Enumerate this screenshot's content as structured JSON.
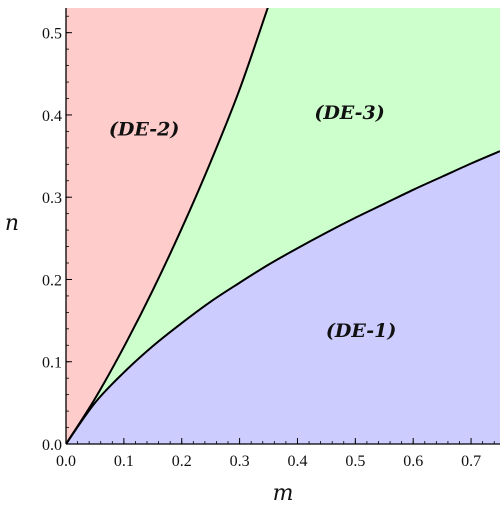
{
  "chart_data": {
    "type": "area",
    "title": "",
    "xlabel": "m",
    "ylabel": "n",
    "xlim": [
      0,
      0.75
    ],
    "ylim": [
      0,
      0.53
    ],
    "grid": false,
    "x_ticks": [
      0.0,
      0.1,
      0.2,
      0.3,
      0.4,
      0.5,
      0.6,
      0.7
    ],
    "x_tick_labels": [
      "0.0",
      "0.1",
      "0.2",
      "0.3",
      "0.4",
      "0.5",
      "0.6",
      "0.7"
    ],
    "y_ticks": [
      0.0,
      0.1,
      0.2,
      0.3,
      0.4,
      0.5
    ],
    "y_tick_labels": [
      "0.0",
      "0.1",
      "0.2",
      "0.3",
      "0.4",
      "0.5"
    ],
    "boundaries": [
      {
        "id": "upper",
        "x": [
          0.0,
          0.05,
          0.1,
          0.15,
          0.2,
          0.25,
          0.3,
          0.35
        ],
        "y": [
          0.0,
          0.055,
          0.118,
          0.187,
          0.262,
          0.343,
          0.431,
          0.533
        ]
      },
      {
        "id": "lower",
        "x": [
          0.0,
          0.05,
          0.1,
          0.15,
          0.2,
          0.25,
          0.3,
          0.35,
          0.4,
          0.45,
          0.5,
          0.55,
          0.6,
          0.65,
          0.7,
          0.75
        ],
        "y": [
          0.0,
          0.05,
          0.087,
          0.119,
          0.147,
          0.173,
          0.196,
          0.218,
          0.238,
          0.257,
          0.275,
          0.292,
          0.309,
          0.325,
          0.341,
          0.356
        ]
      }
    ],
    "regions": [
      {
        "label": "(DE-2)",
        "color": "#ffcccc",
        "label_at": [
          0.135,
          0.375
        ],
        "between": [
          "upper",
          "top"
        ]
      },
      {
        "label": "(DE-3)",
        "color": "#ccffcc",
        "label_at": [
          0.49,
          0.395
        ],
        "between": [
          "lower",
          "upper"
        ]
      },
      {
        "label": "(DE-1)",
        "color": "#ccccff",
        "label_at": [
          0.51,
          0.13
        ],
        "between": [
          "bottom",
          "lower"
        ]
      }
    ]
  }
}
